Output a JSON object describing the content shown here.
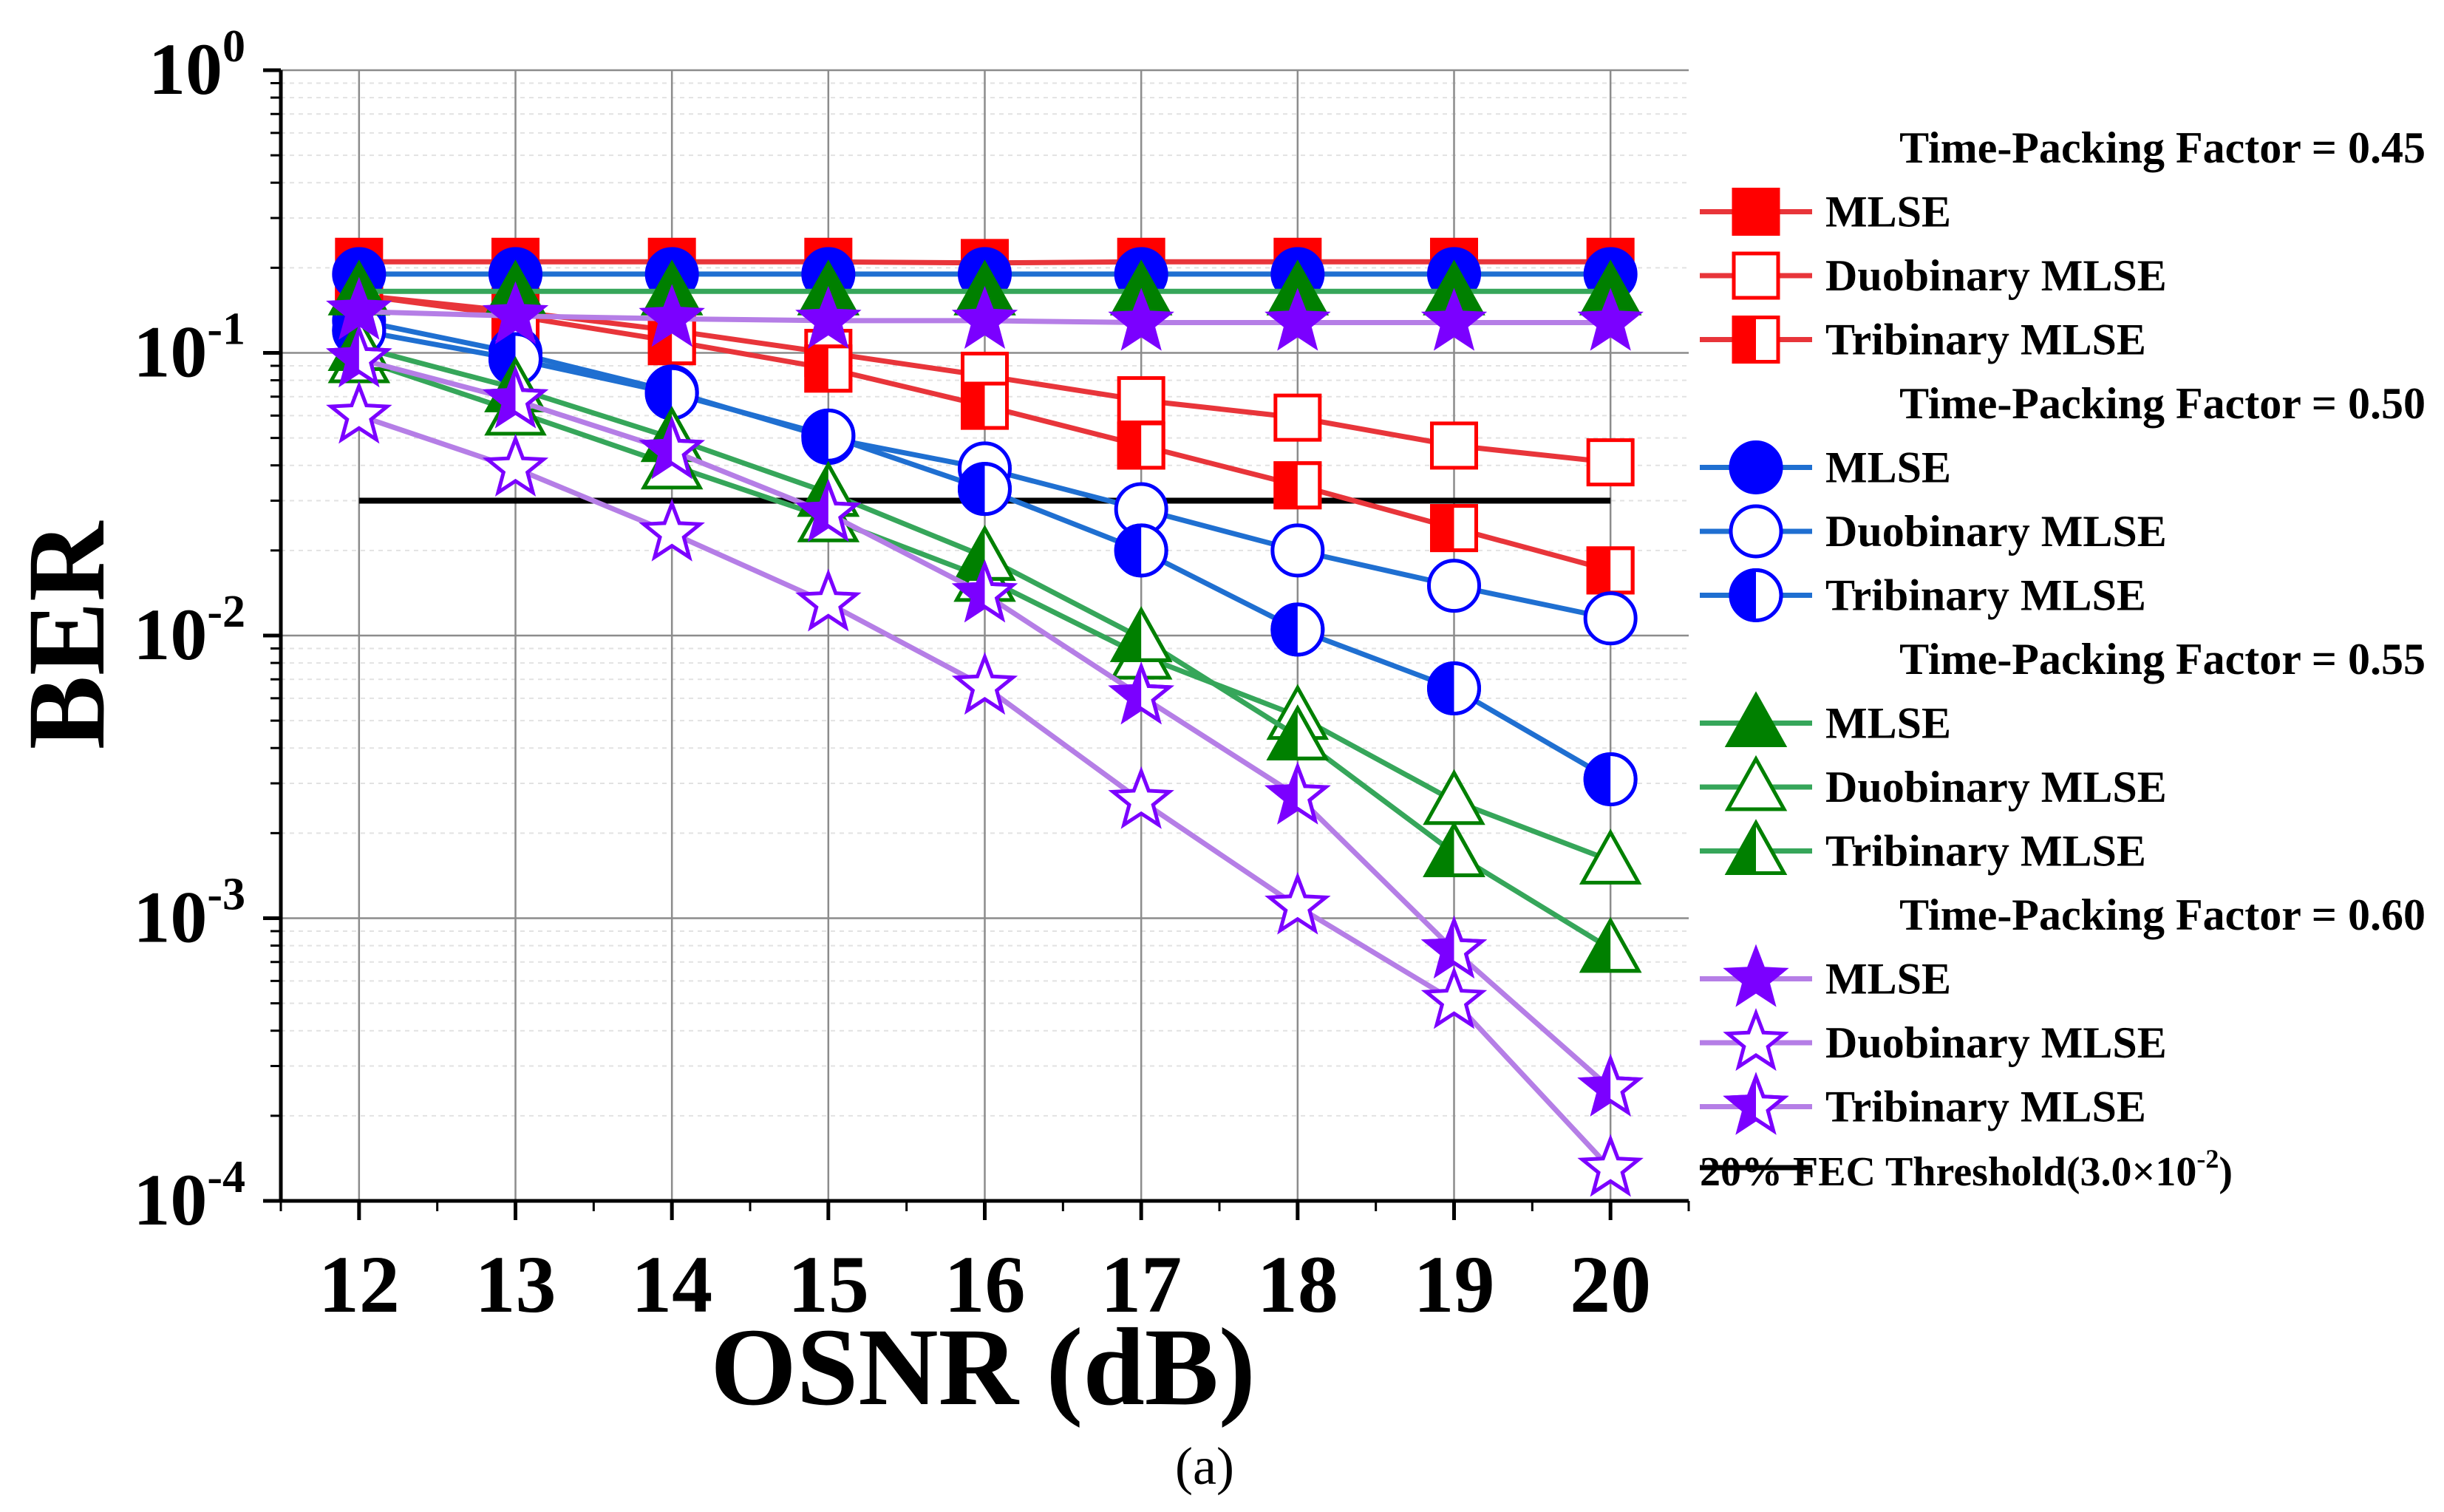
{
  "chart_data": {
    "type": "line",
    "title": "",
    "xlabel": "OSNR (dB)",
    "ylabel": "BER",
    "yscale": "log",
    "xlim": [
      11.5,
      20.5
    ],
    "ylim": [
      0.0001,
      1
    ],
    "x": [
      12,
      13,
      14,
      15,
      16,
      17,
      18,
      19,
      20
    ],
    "x_tick_labels": [
      "12",
      "13",
      "14",
      "15",
      "16",
      "17",
      "18",
      "19",
      "20"
    ],
    "y_ticks": [
      {
        "value": 1,
        "base": "10",
        "exp": "0"
      },
      {
        "value": 0.1,
        "base": "10",
        "exp": "-1"
      },
      {
        "value": 0.01,
        "base": "10",
        "exp": "-2"
      },
      {
        "value": 0.001,
        "base": "10",
        "exp": "-3"
      },
      {
        "value": 0.0001,
        "base": "10",
        "exp": "-4"
      }
    ],
    "grid": true,
    "caption": "(a)",
    "threshold": {
      "label": "20% FEC Threshold(3.0×10",
      "label_exp": "-2",
      "label_close": ")",
      "value": 0.03,
      "x_range": [
        12,
        20
      ],
      "color": "#000000"
    },
    "groups": [
      {
        "title": "Time-Packing Factor = 0.45",
        "color": "#e8353a",
        "marker_color": "#ff0000"
      },
      {
        "title": "Time-Packing Factor = 0.50",
        "color": "#1f6fd1",
        "marker_color": "#0000ff"
      },
      {
        "title": "Time-Packing Factor = 0.55",
        "color": "#36a65a",
        "marker_color": "#008000"
      },
      {
        "title": "Time-Packing Factor = 0.60",
        "color": "#b57ee6",
        "marker_color": "#7b00ff"
      }
    ],
    "series": [
      {
        "name": "MLSE",
        "group": 0,
        "marker": "square",
        "fill": "full",
        "values": [
          0.21,
          0.21,
          0.21,
          0.21,
          0.208,
          0.21,
          0.21,
          0.21,
          0.21
        ]
      },
      {
        "name": "Duobinary MLSE",
        "group": 0,
        "marker": "square",
        "fill": "none",
        "values": [
          0.16,
          0.14,
          0.12,
          0.1,
          0.083,
          0.068,
          0.059,
          0.047,
          0.041
        ]
      },
      {
        "name": "Tribinary MLSE",
        "group": 0,
        "marker": "square",
        "fill": "half",
        "values": [
          0.16,
          0.135,
          0.11,
          0.088,
          0.065,
          0.047,
          0.034,
          0.024,
          0.017
        ]
      },
      {
        "name": "MLSE",
        "group": 1,
        "marker": "circle",
        "fill": "full",
        "values": [
          0.19,
          0.19,
          0.19,
          0.19,
          0.19,
          0.19,
          0.19,
          0.19,
          0.19
        ]
      },
      {
        "name": "Duobinary MLSE",
        "group": 1,
        "marker": "circle",
        "fill": "none",
        "values": [
          0.13,
          0.1,
          0.073,
          0.05,
          0.039,
          0.028,
          0.02,
          0.015,
          0.0115
        ]
      },
      {
        "name": "Tribinary MLSE",
        "group": 1,
        "marker": "circle",
        "fill": "half",
        "values": [
          0.12,
          0.095,
          0.072,
          0.051,
          0.033,
          0.02,
          0.0105,
          0.0065,
          0.0031
        ]
      },
      {
        "name": "MLSE",
        "group": 2,
        "marker": "triangle",
        "fill": "full",
        "values": [
          0.165,
          0.165,
          0.165,
          0.165,
          0.165,
          0.165,
          0.165,
          0.165,
          0.165
        ]
      },
      {
        "name": "Duobinary MLSE",
        "group": 2,
        "marker": "triangle",
        "fill": "none",
        "values": [
          0.095,
          0.062,
          0.04,
          0.026,
          0.016,
          0.0085,
          0.0052,
          0.0026,
          0.0016
        ]
      },
      {
        "name": "Tribinary MLSE",
        "group": 2,
        "marker": "triangle",
        "fill": "half",
        "values": [
          0.105,
          0.075,
          0.05,
          0.032,
          0.019,
          0.0098,
          0.0044,
          0.0017,
          0.00078
        ]
      },
      {
        "name": "MLSE",
        "group": 3,
        "marker": "star",
        "fill": "full",
        "values": [
          0.14,
          0.135,
          0.132,
          0.13,
          0.13,
          0.128,
          0.128,
          0.128,
          0.128
        ]
      },
      {
        "name": "Duobinary MLSE",
        "group": 3,
        "marker": "star",
        "fill": "none",
        "values": [
          0.06,
          0.039,
          0.023,
          0.013,
          0.0066,
          0.0026,
          0.0011,
          0.00051,
          0.00013
        ]
      },
      {
        "name": "Tribinary MLSE",
        "group": 3,
        "marker": "star",
        "fill": "half",
        "values": [
          0.095,
          0.068,
          0.045,
          0.027,
          0.014,
          0.0061,
          0.0027,
          0.00077,
          0.00025
        ]
      }
    ]
  }
}
